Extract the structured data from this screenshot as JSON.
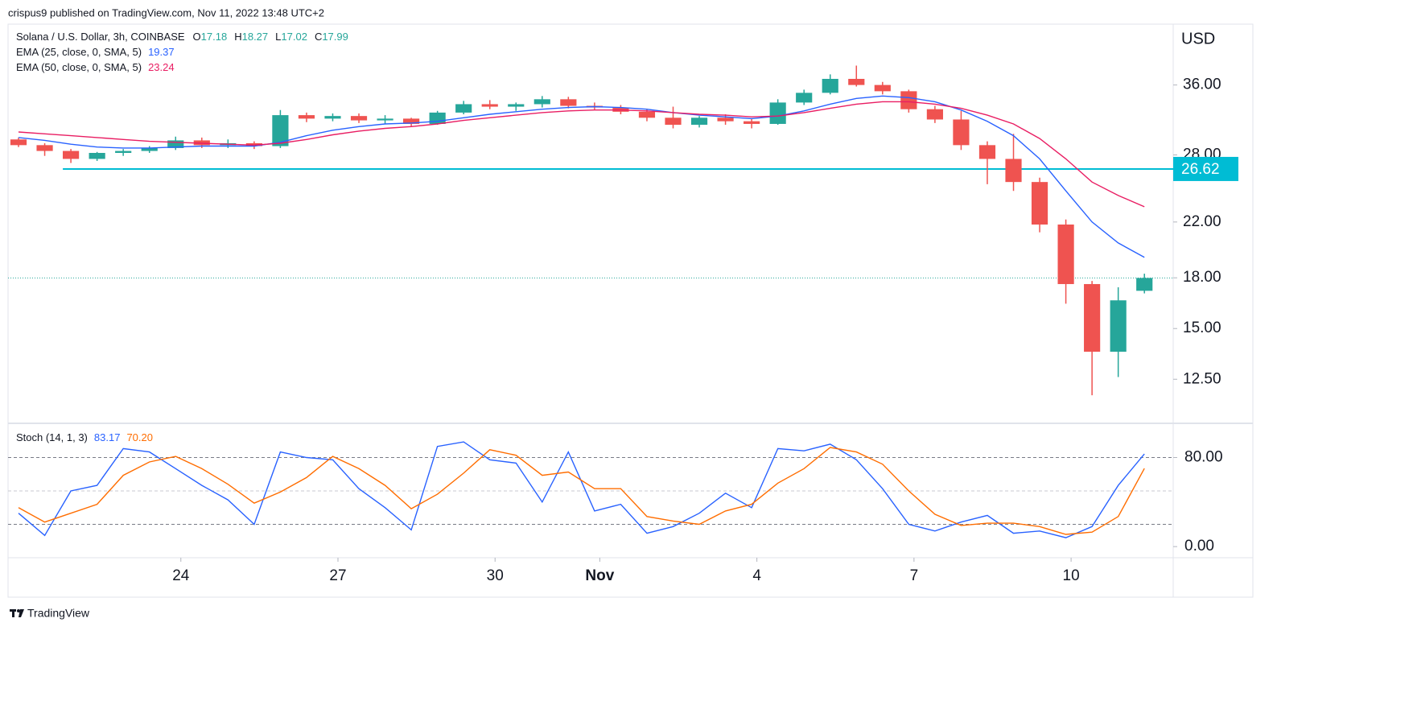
{
  "chart_data": {
    "type": "candlestick",
    "published": "crispus9 published on TradingView.com, Nov 11, 2022 13:48 UTC+2",
    "title": "Solana / U.S. Dollar, 3h, COINBASE",
    "ohlc_labels": [
      "O",
      "H",
      "L",
      "C"
    ],
    "x": [
      20.9,
      21.4,
      21.9,
      22.4,
      22.9,
      23.4,
      23.9,
      24.4,
      24.9,
      25.4,
      25.9,
      26.4,
      26.9,
      27.4,
      27.9,
      28.4,
      28.9,
      29.4,
      29.9,
      30.4,
      30.9,
      31.4,
      31.9,
      32.4,
      32.9,
      33.4,
      33.9,
      34.4,
      34.9,
      35.4,
      35.9,
      36.4,
      36.9,
      37.4,
      37.9,
      38.4,
      38.9,
      39.4,
      39.9,
      40.4,
      40.9,
      41.4,
      41.9,
      42.4
    ],
    "open": [
      29.6,
      29.0,
      28.4,
      27.6,
      28.2,
      28.4,
      28.7,
      29.5,
      29.0,
      29.2,
      28.9,
      32.3,
      31.9,
      32.2,
      31.7,
      31.9,
      31.3,
      32.6,
      33.6,
      33.3,
      33.6,
      34.2,
      33.4,
      33.2,
      32.7,
      32.0,
      31.2,
      32.0,
      31.6,
      31.3,
      33.8,
      35.0,
      36.8,
      36.0,
      35.2,
      33.0,
      31.8,
      29.0,
      27.6,
      25.4,
      21.8,
      17.6,
      13.8,
      17.18
    ],
    "high": [
      29.8,
      29.2,
      28.6,
      28.3,
      28.6,
      28.9,
      29.9,
      29.8,
      29.6,
      29.4,
      32.9,
      32.6,
      32.5,
      32.5,
      32.3,
      32.0,
      32.8,
      34.0,
      34.1,
      33.8,
      34.6,
      34.5,
      33.8,
      33.5,
      33.0,
      33.3,
      32.2,
      32.4,
      31.9,
      34.2,
      35.4,
      37.4,
      38.6,
      36.4,
      35.4,
      33.4,
      32.8,
      29.4,
      30.2,
      25.8,
      22.2,
      17.8,
      17.4,
      18.27
    ],
    "low": [
      28.8,
      27.9,
      27.2,
      27.4,
      27.9,
      28.2,
      28.5,
      28.7,
      28.7,
      28.6,
      28.7,
      31.5,
      31.6,
      31.4,
      31.3,
      31.0,
      31.2,
      32.4,
      33.0,
      32.8,
      33.2,
      33.1,
      32.9,
      32.4,
      31.6,
      30.8,
      30.9,
      31.2,
      30.8,
      31.2,
      33.5,
      34.8,
      35.8,
      34.8,
      32.6,
      31.4,
      28.5,
      25.2,
      24.6,
      21.2,
      16.4,
      11.8,
      12.6,
      17.02
    ],
    "close": [
      29.0,
      28.4,
      27.6,
      28.2,
      28.4,
      28.7,
      29.5,
      29.0,
      29.2,
      28.9,
      32.3,
      31.9,
      32.2,
      31.7,
      31.9,
      31.3,
      32.6,
      33.6,
      33.3,
      33.6,
      34.2,
      33.4,
      33.2,
      32.7,
      32.0,
      31.2,
      32.0,
      31.6,
      31.3,
      33.8,
      35.0,
      36.8,
      36.0,
      35.2,
      33.0,
      31.8,
      29.0,
      27.6,
      25.4,
      21.8,
      17.6,
      13.8,
      16.6,
      17.99
    ],
    "up_color": "#26a69a",
    "down_color": "#ef5350",
    "log": true,
    "y_axis_label": "USD",
    "ylim": [
      10.7,
      44.8
    ],
    "yticks": [
      {
        "value": 12.5,
        "label": "12.50"
      },
      {
        "value": 15,
        "label": "15.00"
      },
      {
        "value": 18,
        "label": "18.00"
      },
      {
        "value": 22,
        "label": "22.00"
      },
      {
        "value": 28,
        "label": "28.00"
      },
      {
        "value": 36,
        "label": "36.00"
      }
    ],
    "xlim": [
      20.7,
      42.95
    ],
    "xticks": [
      24,
      27,
      30,
      {
        "value": 32,
        "label": "Nov"
      },
      {
        "value": 35,
        "label": "4"
      },
      {
        "value": 38,
        "label": "7"
      },
      {
        "value": 41,
        "label": "10"
      }
    ],
    "level": {
      "value": 26.62,
      "color": "#00bcd4"
    },
    "overlays": [
      {
        "name": "EMA (25, close, 0, SMA, 5)",
        "color": "#2962ff",
        "values": [
          29.8,
          29.5,
          29.1,
          28.8,
          28.7,
          28.7,
          28.8,
          28.9,
          28.9,
          28.9,
          29.3,
          30.0,
          30.6,
          31.0,
          31.3,
          31.4,
          31.6,
          32.0,
          32.4,
          32.7,
          33.0,
          33.2,
          33.3,
          33.2,
          33.0,
          32.6,
          32.3,
          32.1,
          31.9,
          32.2,
          32.8,
          33.6,
          34.3,
          34.6,
          34.4,
          33.9,
          32.9,
          31.6,
          30.0,
          27.6,
          24.6,
          22.0,
          20.4,
          19.37
        ]
      },
      {
        "name": "EMA (50, close, 0, SMA, 5)",
        "color": "#e91e63",
        "values": [
          30.4,
          30.2,
          30.0,
          29.8,
          29.6,
          29.4,
          29.3,
          29.2,
          29.1,
          29.0,
          29.2,
          29.6,
          30.1,
          30.5,
          30.8,
          31.0,
          31.3,
          31.7,
          32.0,
          32.3,
          32.6,
          32.8,
          32.9,
          32.9,
          32.8,
          32.6,
          32.4,
          32.3,
          32.1,
          32.2,
          32.6,
          33.1,
          33.6,
          33.9,
          33.9,
          33.6,
          33.1,
          32.3,
          31.3,
          29.7,
          27.6,
          25.4,
          24.2,
          23.24
        ]
      }
    ],
    "stoch": {
      "name": "Stoch (14, 1, 3)",
      "ylim": [
        -10,
        110
      ],
      "yticks": [
        {
          "value": 0,
          "label": "0.00"
        },
        {
          "value": 80,
          "label": "80.00"
        }
      ],
      "levels": [
        80,
        50,
        20
      ],
      "series": [
        {
          "color": "#2962ff",
          "values": [
            30,
            10,
            50,
            55,
            88,
            85,
            70,
            55,
            42,
            20,
            85,
            80,
            78,
            52,
            35,
            15,
            90,
            94,
            78,
            75,
            40,
            85,
            32,
            38,
            12,
            18,
            30,
            48,
            35,
            88,
            86,
            92,
            78,
            52,
            20,
            14,
            22,
            28,
            12,
            14,
            8,
            18,
            55,
            83.17
          ]
        },
        {
          "color": "#ff6d00",
          "legend_label": "70.20",
          "values": [
            35,
            22,
            30,
            38,
            64,
            76,
            81,
            70,
            56,
            39,
            49,
            62,
            81,
            70,
            55,
            34,
            47,
            66,
            87,
            82,
            64,
            67,
            52,
            52,
            27,
            23,
            20,
            32,
            38,
            57,
            70,
            89,
            85,
            74,
            50,
            29,
            19,
            21,
            21,
            18,
            11,
            13,
            27,
            70.2
          ]
        }
      ]
    },
    "footer": "TradingView"
  }
}
